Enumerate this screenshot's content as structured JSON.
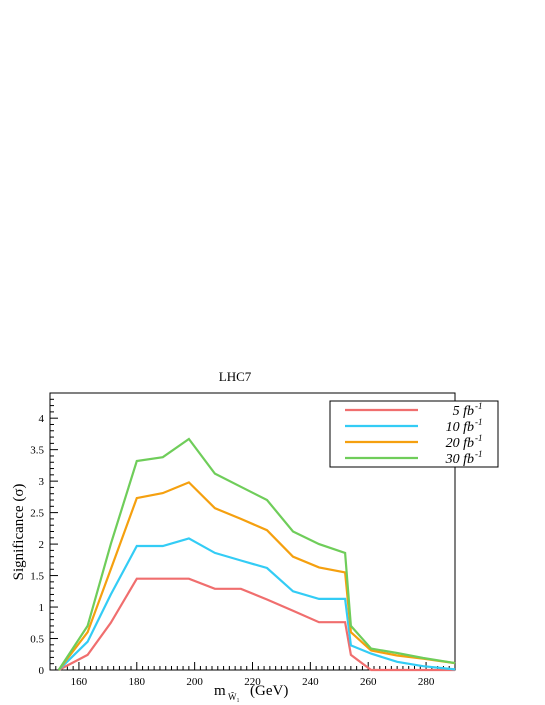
{
  "chart_data": {
    "type": "line",
    "title": "LHC7",
    "xlabel": "m",
    "xlabel_sub": "W̃₁",
    "xlabel_unit": "(GeV)",
    "ylabel": "Significance (σ)",
    "xlim": [
      150,
      290
    ],
    "ylim": [
      0,
      4.4
    ],
    "x_ticks": [
      160,
      180,
      200,
      220,
      240,
      260,
      280
    ],
    "y_ticks": [
      0,
      0.5,
      1,
      1.5,
      2,
      2.5,
      3,
      3.5,
      4
    ],
    "y_tick_labels": [
      "0",
      "0.5",
      "1",
      "1.5",
      "2",
      "2.5",
      "3",
      "3.5",
      "4"
    ],
    "grid": false,
    "legend_position": "top-right",
    "x": [
      153,
      163,
      171,
      180,
      189,
      198,
      207,
      216,
      225,
      234,
      243,
      252,
      254,
      261,
      270,
      279,
      290
    ],
    "series": [
      {
        "name": "5  fb",
        "name_sup": "-1",
        "color": "#f06e6e",
        "values": [
          0.0,
          0.24,
          0.75,
          1.45,
          1.45,
          1.45,
          1.29,
          1.29,
          1.12,
          0.94,
          0.76,
          0.76,
          0.24,
          0.0,
          0.0,
          0.0,
          0.0
        ]
      },
      {
        "name": "10  fb",
        "name_sup": "-1",
        "color": "#33ccf5",
        "values": [
          0.0,
          0.45,
          1.2,
          1.97,
          1.97,
          2.09,
          1.86,
          1.74,
          1.62,
          1.25,
          1.13,
          1.13,
          0.39,
          0.26,
          0.13,
          0.06,
          0.01
        ]
      },
      {
        "name": "20  fb",
        "name_sup": "-1",
        "color": "#f5a00f",
        "values": [
          0.0,
          0.6,
          1.6,
          2.73,
          2.81,
          2.98,
          2.57,
          2.4,
          2.22,
          1.8,
          1.63,
          1.55,
          0.6,
          0.31,
          0.23,
          0.18,
          0.11
        ]
      },
      {
        "name": "30  fb",
        "name_sup": "-1",
        "color": "#6fcd5a",
        "values": [
          0.0,
          0.7,
          2.0,
          3.32,
          3.38,
          3.67,
          3.12,
          2.91,
          2.7,
          2.2,
          2.0,
          1.86,
          0.7,
          0.34,
          0.27,
          0.19,
          0.11
        ]
      }
    ]
  }
}
